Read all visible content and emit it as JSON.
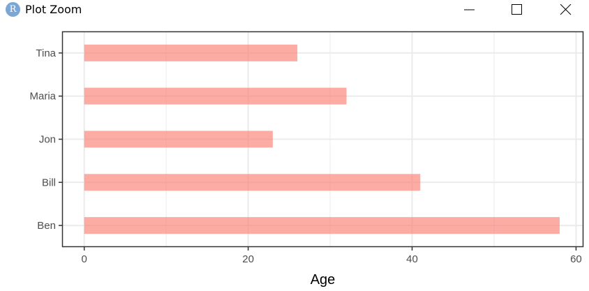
{
  "window": {
    "app_icon_letter": "R",
    "title": "Plot Zoom",
    "controls": [
      "minimize-icon",
      "maximize-icon",
      "close-icon"
    ]
  },
  "chart_data": {
    "type": "bar",
    "orientation": "horizontal",
    "categories": [
      "Ben",
      "Bill",
      "Jon",
      "Maria",
      "Tina"
    ],
    "values": [
      58,
      41,
      23,
      32,
      26
    ],
    "xlabel": "Age",
    "ylabel": "",
    "xlim": [
      -2.7,
      60.9
    ],
    "xticks": [
      0,
      20,
      40,
      60
    ],
    "grid": true,
    "bar_color": "#FA8072",
    "bar_opacity": 0.65,
    "grid_color": "#ebebeb",
    "panel_border_color": "#333333",
    "legend": "none"
  }
}
